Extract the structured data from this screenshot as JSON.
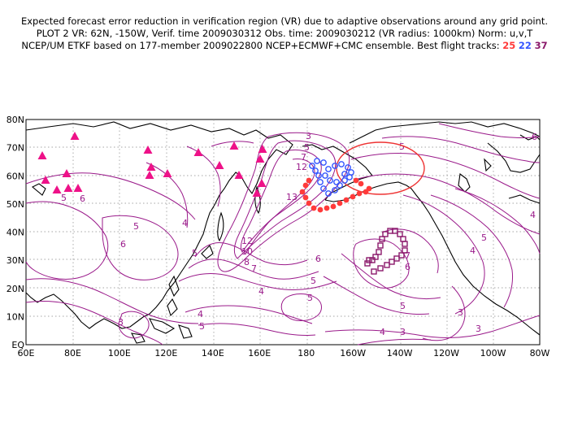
{
  "header": {
    "line1": "Expected forecast error reduction in verification region (VR) due to adaptive observations around any grid point.",
    "line2": "PLOT 2 VR: 62N, -150W, Verif. time 2009030312 Obs. time: 2009030212 (VR radius: 1000km) Norm: u,v,T",
    "line3_prefix": "NCEP/UM ETKF based on 177-member 2009022800 NCEP+ECMWF+CMC ensemble. Best flight tracks:",
    "tracks": [
      {
        "id": "25",
        "color": "#ff3a3a"
      },
      {
        "id": "22",
        "color": "#3355ff"
      },
      {
        "id": "37",
        "color": "#8b1a6b"
      }
    ]
  },
  "map": {
    "lat_labels": [
      "80N",
      "70N",
      "60N",
      "50N",
      "40N",
      "30N",
      "20N",
      "10N",
      "EQ"
    ],
    "lon_labels": [
      "60E",
      "80E",
      "100E",
      "120E",
      "140E",
      "160E",
      "180",
      "160W",
      "140W",
      "120W",
      "100W",
      "80W"
    ],
    "contour_color": "#9a1a8a",
    "contour_labels": [
      "3",
      "5",
      "7",
      "12",
      "13",
      "4",
      "6",
      "5",
      "12",
      "10",
      "8",
      "7",
      "6",
      "5",
      "5",
      "6",
      "5",
      "4",
      "4",
      "5",
      "4",
      "5",
      "5",
      "6",
      "7",
      "4",
      "5",
      "3",
      "3",
      "3",
      "4",
      "6",
      "5",
      "3"
    ],
    "verification_region": {
      "center": "62N, 150W",
      "radius_km": 1000,
      "color": "#ee3333"
    },
    "observation_sites": {
      "symbol": "triangle",
      "color": "#ee1188"
    }
  }
}
